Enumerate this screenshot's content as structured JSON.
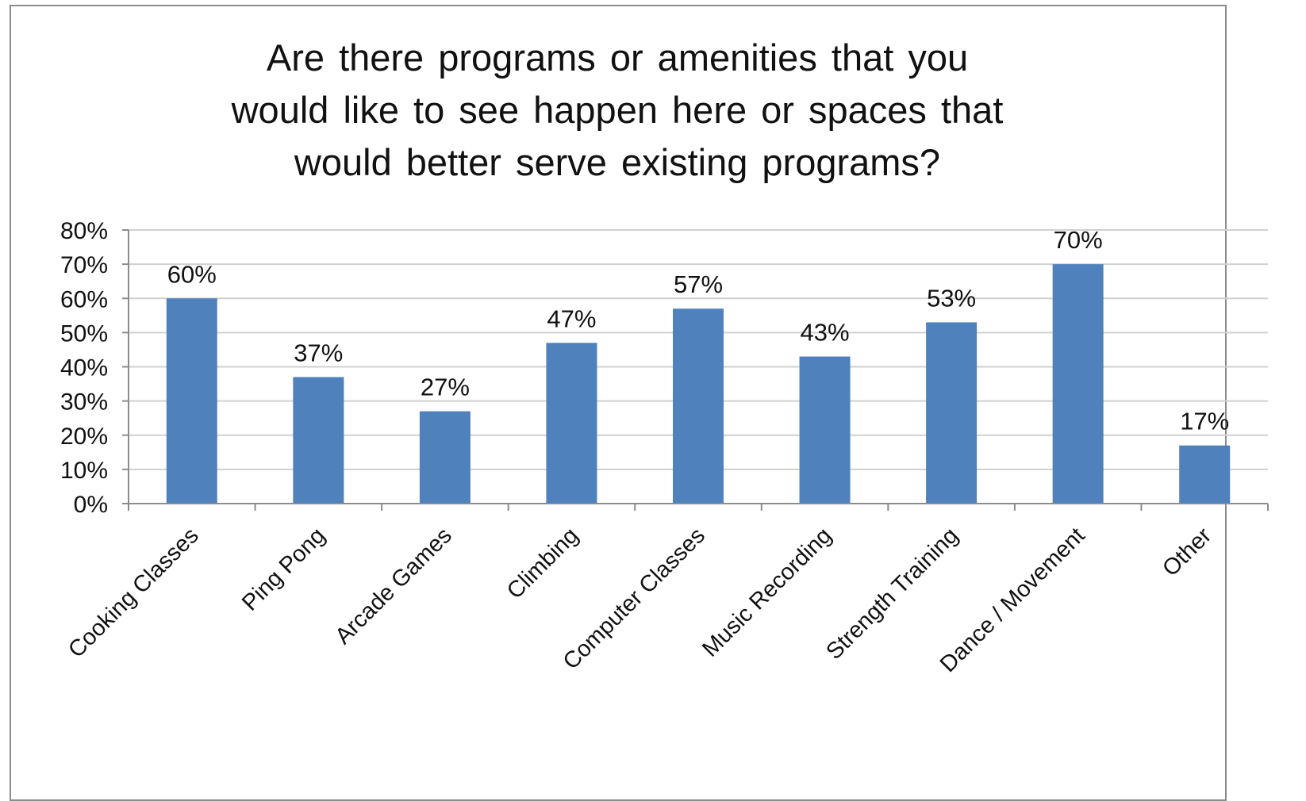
{
  "chart_data": {
    "type": "bar",
    "title": "Are there programs or amenities that you would like to see happen here or spaces that would better serve existing programs?",
    "title_lines": [
      "Are there programs or amenities that you",
      "would like to see happen here or spaces that",
      "would better serve existing programs?"
    ],
    "categories": [
      "Cooking Classes",
      "Ping Pong",
      "Arcade Games",
      "Climbing",
      "Computer Classes",
      "Music Recording",
      "Strength Training",
      "Dance / Movement",
      "Other"
    ],
    "values": [
      60,
      37,
      27,
      47,
      57,
      43,
      53,
      70,
      17
    ],
    "data_labels": [
      "60%",
      "37%",
      "27%",
      "47%",
      "57%",
      "43%",
      "53%",
      "70%",
      "17%"
    ],
    "y_ticks": [
      "0%",
      "10%",
      "20%",
      "30%",
      "40%",
      "50%",
      "60%",
      "70%",
      "80%"
    ],
    "ylim": [
      0,
      80
    ],
    "grid": true,
    "legend": "none",
    "bar_color": "#4f81bd"
  }
}
